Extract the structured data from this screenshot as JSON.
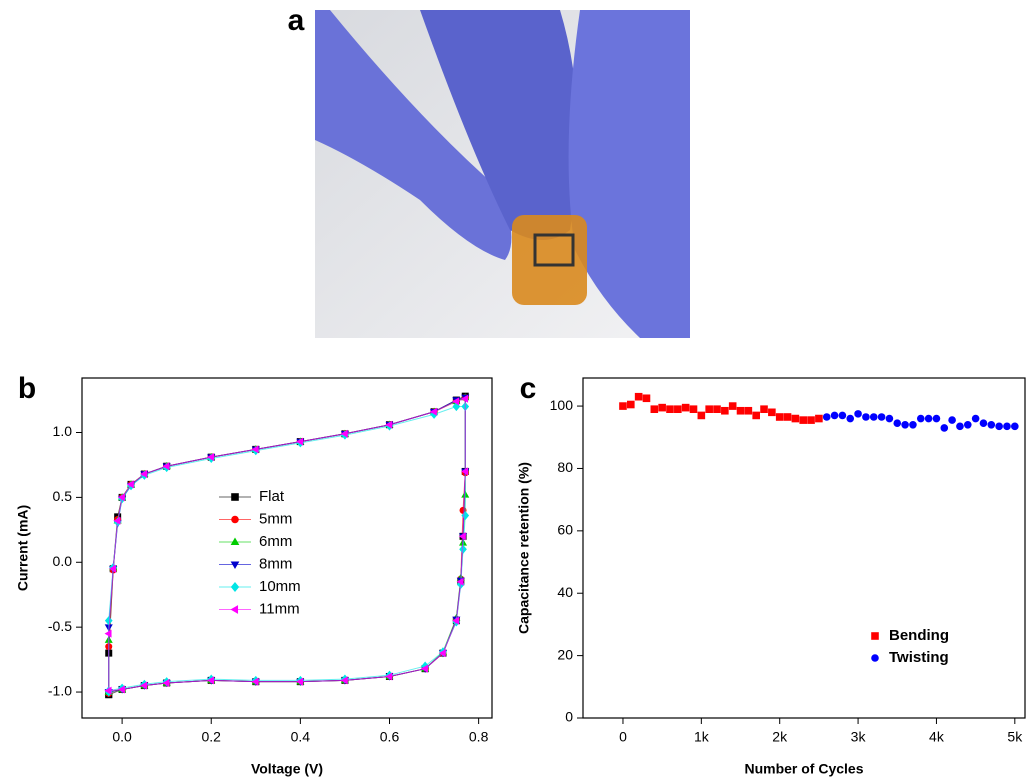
{
  "photo": {
    "label": "a"
  },
  "chart_data": [
    {
      "type": "line",
      "label": "b",
      "xlabel": "Voltage (V)",
      "ylabel": "Current (mA)",
      "xlim": [
        -0.09,
        0.83
      ],
      "ylim": [
        -1.2,
        1.42
      ],
      "xticks": [
        {
          "value": 0,
          "label": "0.0"
        },
        0.2,
        0.4,
        0.6,
        0.8
      ],
      "yticks": [
        {
          "value": -1,
          "label": "-1.0"
        },
        -0.5,
        {
          "value": 0,
          "label": "0.0"
        },
        0.5,
        {
          "value": 1,
          "label": "1.0"
        }
      ],
      "line": true,
      "legend": "center",
      "x": [
        -0.03,
        -0.03,
        -0.02,
        -0.01,
        0.0,
        0.02,
        0.05,
        0.1,
        0.2,
        0.3,
        0.4,
        0.5,
        0.6,
        0.7,
        0.75,
        0.77,
        0.77,
        0.765,
        0.76,
        0.75,
        0.72,
        0.68,
        0.6,
        0.5,
        0.4,
        0.3,
        0.2,
        0.1,
        0.05,
        0.0,
        -0.03
      ],
      "series": [
        {
          "name": "Flat",
          "color": "#000000",
          "marker": "square",
          "values": [
            -1.02,
            -0.7,
            -0.05,
            0.35,
            0.5,
            0.6,
            0.68,
            0.74,
            0.81,
            0.87,
            0.93,
            0.99,
            1.06,
            1.16,
            1.25,
            1.28,
            0.7,
            0.2,
            -0.15,
            -0.45,
            -0.7,
            -0.82,
            -0.88,
            -0.91,
            -0.92,
            -0.92,
            -0.91,
            -0.93,
            -0.95,
            -0.98,
            -1.02
          ]
        },
        {
          "name": "5mm",
          "color": "#ff0000",
          "marker": "circle",
          "values": [
            -1.01,
            -0.65,
            -0.06,
            0.33,
            0.5,
            0.6,
            0.68,
            0.74,
            0.81,
            0.87,
            0.93,
            0.99,
            1.06,
            1.16,
            1.24,
            1.27,
            0.69,
            0.4,
            -0.13,
            -0.44,
            -0.7,
            -0.82,
            -0.88,
            -0.91,
            -0.92,
            -0.92,
            -0.91,
            -0.93,
            -0.95,
            -0.98,
            -1.0
          ]
        },
        {
          "name": "6mm",
          "color": "#00cc00",
          "marker": "triangle-up",
          "values": [
            -1.0,
            -0.6,
            -0.04,
            0.32,
            0.5,
            0.6,
            0.68,
            0.74,
            0.81,
            0.87,
            0.93,
            0.99,
            1.06,
            1.16,
            1.24,
            1.27,
            0.52,
            0.15,
            -0.12,
            -0.43,
            -0.69,
            -0.82,
            -0.88,
            -0.91,
            -0.92,
            -0.92,
            -0.91,
            -0.93,
            -0.95,
            -0.98,
            -1.0
          ]
        },
        {
          "name": "8mm",
          "color": "#0000cc",
          "marker": "triangle-down",
          "values": [
            -1.0,
            -0.5,
            -0.05,
            0.3,
            0.49,
            0.59,
            0.68,
            0.74,
            0.81,
            0.87,
            0.93,
            0.99,
            1.06,
            1.16,
            1.25,
            1.27,
            0.7,
            0.2,
            -0.14,
            -0.44,
            -0.7,
            -0.82,
            -0.88,
            -0.91,
            -0.92,
            -0.92,
            -0.91,
            -0.93,
            -0.95,
            -0.98,
            -1.0
          ]
        },
        {
          "name": "10mm",
          "color": "#00e5e5",
          "marker": "diamond",
          "values": [
            -1.0,
            -0.45,
            -0.04,
            0.31,
            0.49,
            0.59,
            0.67,
            0.73,
            0.8,
            0.86,
            0.92,
            0.98,
            1.05,
            1.14,
            1.2,
            1.2,
            0.36,
            0.1,
            -0.17,
            -0.46,
            -0.69,
            -0.8,
            -0.87,
            -0.9,
            -0.91,
            -0.91,
            -0.9,
            -0.92,
            -0.94,
            -0.97,
            -0.99
          ]
        },
        {
          "name": "11mm",
          "color": "#ff00ff",
          "marker": "triangle-left",
          "values": [
            -0.99,
            -0.55,
            -0.05,
            0.32,
            0.5,
            0.6,
            0.68,
            0.74,
            0.81,
            0.87,
            0.93,
            0.99,
            1.06,
            1.16,
            1.24,
            1.26,
            0.7,
            0.2,
            -0.15,
            -0.45,
            -0.7,
            -0.82,
            -0.88,
            -0.91,
            -0.92,
            -0.92,
            -0.91,
            -0.93,
            -0.95,
            -0.98,
            -0.99
          ]
        }
      ]
    },
    {
      "type": "scatter",
      "label": "c",
      "xlabel": "Number of Cycles",
      "ylabel": "Capacitance retention (%)",
      "xlim": [
        -510,
        5130
      ],
      "ylim": [
        0,
        109
      ],
      "xticks": [
        0,
        {
          "value": 1000,
          "label": "1k"
        },
        {
          "value": 2000,
          "label": "2k"
        },
        {
          "value": 3000,
          "label": "3k"
        },
        {
          "value": 4000,
          "label": "4k"
        },
        {
          "value": 5000,
          "label": "5k"
        }
      ],
      "yticks": [
        0,
        20,
        40,
        60,
        80,
        100
      ],
      "line": false,
      "legend": "lower right",
      "series": [
        {
          "name": "Bending",
          "color": "#ff0000",
          "marker": "square",
          "x": [
            0,
            100,
            200,
            300,
            400,
            500,
            600,
            700,
            800,
            900,
            1000,
            1100,
            1200,
            1300,
            1400,
            1500,
            1600,
            1700,
            1800,
            1900,
            2000,
            2100,
            2200,
            2300,
            2400,
            2500
          ],
          "values": [
            100,
            100.5,
            103,
            102.5,
            99,
            99.5,
            99,
            99,
            99.5,
            99,
            97,
            99,
            99,
            98.5,
            100,
            98.5,
            98.5,
            97,
            99,
            98,
            96.5,
            96.5,
            96,
            95.5,
            95.5,
            96
          ]
        },
        {
          "name": "Twisting",
          "color": "#0000ff",
          "marker": "circle",
          "x": [
            2600,
            2700,
            2800,
            2900,
            3000,
            3100,
            3200,
            3300,
            3400,
            3500,
            3600,
            3700,
            3800,
            3900,
            4000,
            4100,
            4200,
            4300,
            4400,
            4500,
            4600,
            4700,
            4800,
            4900,
            5000
          ],
          "values": [
            96.5,
            97,
            97,
            96,
            97.5,
            96.5,
            96.5,
            96.5,
            96,
            94.5,
            94,
            94,
            96,
            96,
            96,
            93,
            95.5,
            93.5,
            94,
            96,
            94.5,
            94,
            93.5,
            93.5,
            93.5
          ]
        }
      ]
    }
  ]
}
